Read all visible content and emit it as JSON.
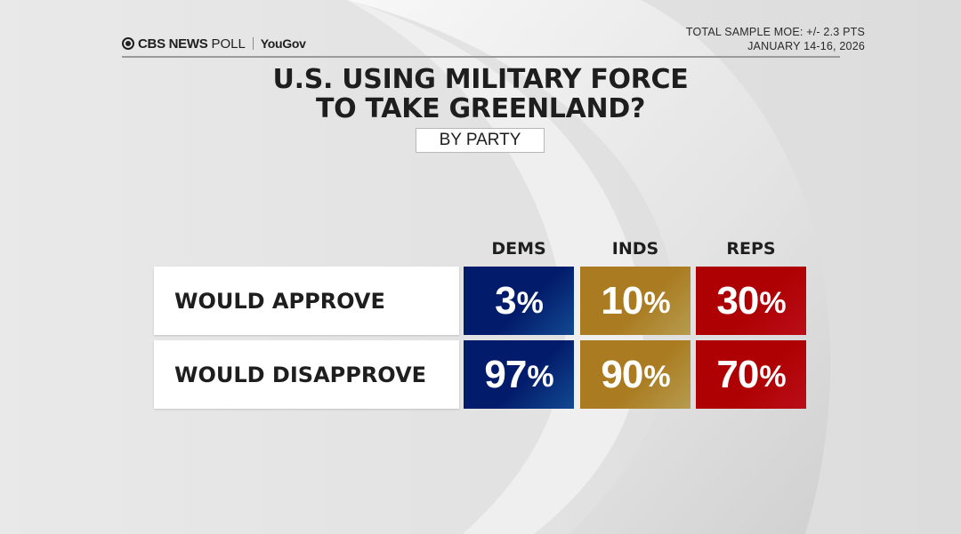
{
  "header": {
    "brand_cbs": "CBS NEWS",
    "brand_poll": "POLL",
    "brand_partner": "YouGov",
    "moe": "TOTAL SAMPLE MOE: +/- 2.3 PTS",
    "date": "JANUARY 14-16, 2026"
  },
  "colors": {
    "dems": "#1553a5",
    "inds": "#d0b15a",
    "reps": "#d3101c",
    "text": "#1e1e1e"
  },
  "chart_data": {
    "type": "table",
    "title": [
      "U.S. USING MILITARY FORCE",
      "TO TAKE GREENLAND?"
    ],
    "subtitle": "BY PARTY",
    "columns": [
      "DEMS",
      "INDS",
      "REPS"
    ],
    "rows": [
      {
        "label": "WOULD APPROVE",
        "values": [
          3,
          10,
          30
        ]
      },
      {
        "label": "WOULD DISAPPROVE",
        "values": [
          97,
          90,
          70
        ]
      }
    ],
    "unit": "%"
  }
}
